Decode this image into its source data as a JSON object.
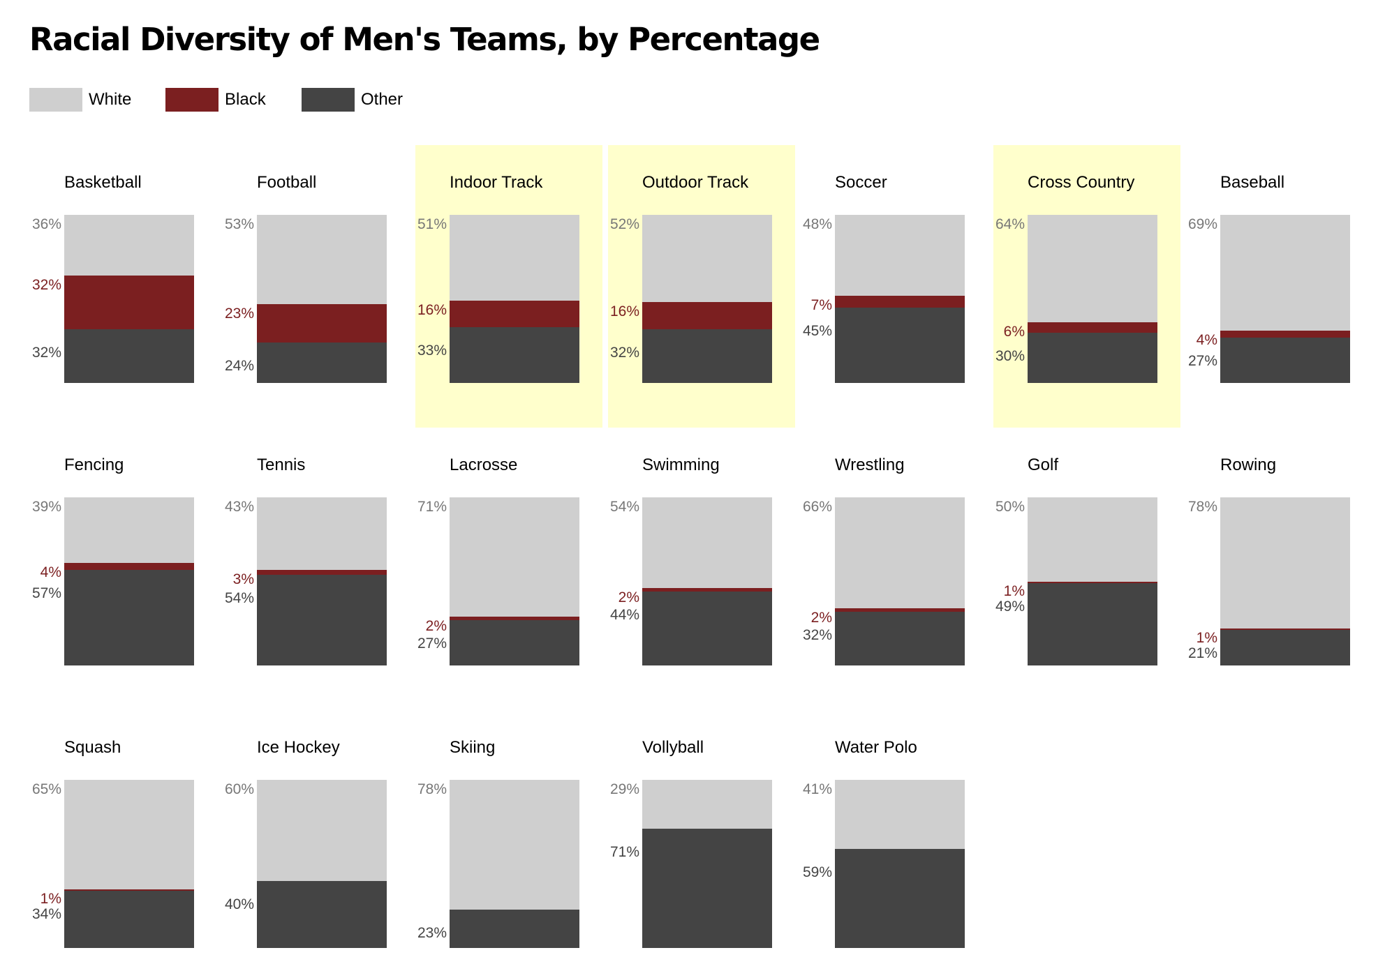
{
  "chart_data": {
    "type": "bar",
    "title": "Racial Diversity of Men's Teams, by Percentage",
    "stacked": true,
    "ylim": [
      0,
      100
    ],
    "legend": {
      "placement": "top-left",
      "entries": [
        {
          "key": "white",
          "label": "White",
          "color": "#cfcfcf"
        },
        {
          "key": "black",
          "label": "Black",
          "color": "#7b1f20"
        },
        {
          "key": "other",
          "label": "Other",
          "color": "#444444"
        }
      ]
    },
    "highlight_color": "#ffffcc",
    "label_colors": {
      "white": "#777777",
      "black": "#7b1f20",
      "other": "#444444"
    },
    "categories": [
      "Basketball",
      "Football",
      "Indoor Track",
      "Outdoor Track",
      "Soccer",
      "Cross Country",
      "Baseball",
      "Fencing",
      "Tennis",
      "Lacrosse",
      "Swimming",
      "Wrestling",
      "Golf",
      "Rowing",
      "Squash",
      "Ice Hockey",
      "Skiing",
      "Vollyball",
      "Water Polo"
    ],
    "panels": [
      {
        "name": "Basketball",
        "white": 36,
        "black": 32,
        "other": 32,
        "white_label": "36%",
        "black_label": "32%",
        "other_label": "32%",
        "highlighted": false
      },
      {
        "name": "Football",
        "white": 53,
        "black": 23,
        "other": 24,
        "white_label": "53%",
        "black_label": "23%",
        "other_label": "24%",
        "highlighted": false
      },
      {
        "name": "Indoor Track",
        "white": 51,
        "black": 16,
        "other": 33,
        "white_label": "51%",
        "black_label": "16%",
        "other_label": "33%",
        "highlighted": true
      },
      {
        "name": "Outdoor Track",
        "white": 52,
        "black": 16,
        "other": 32,
        "white_label": "52%",
        "black_label": "16%",
        "other_label": "32%",
        "highlighted": true
      },
      {
        "name": "Soccer",
        "white": 48,
        "black": 7,
        "other": 45,
        "white_label": "48%",
        "black_label": "7%",
        "other_label": "45%",
        "highlighted": false
      },
      {
        "name": "Cross Country",
        "white": 64,
        "black": 6,
        "other": 30,
        "white_label": "64%",
        "black_label": "6%",
        "other_label": "30%",
        "highlighted": true
      },
      {
        "name": "Baseball",
        "white": 69,
        "black": 4,
        "other": 27,
        "white_label": "69%",
        "black_label": "4%",
        "other_label": "27%",
        "highlighted": false
      },
      {
        "name": "Fencing",
        "white": 39,
        "black": 4,
        "other": 57,
        "white_label": "39%",
        "black_label": "4%",
        "other_label": "57%",
        "highlighted": false
      },
      {
        "name": "Tennis",
        "white": 43,
        "black": 3,
        "other": 54,
        "white_label": "43%",
        "black_label": "3%",
        "other_label": "54%",
        "highlighted": false
      },
      {
        "name": "Lacrosse",
        "white": 71,
        "black": 2,
        "other": 27,
        "white_label": "71%",
        "black_label": "2%",
        "other_label": "27%",
        "highlighted": false
      },
      {
        "name": "Swimming",
        "white": 54,
        "black": 2,
        "other": 44,
        "white_label": "54%",
        "black_label": "2%",
        "other_label": "44%",
        "highlighted": false
      },
      {
        "name": "Wrestling",
        "white": 66,
        "black": 2,
        "other": 32,
        "white_label": "66%",
        "black_label": "2%",
        "other_label": "32%",
        "highlighted": false
      },
      {
        "name": "Golf",
        "white": 50,
        "black": 1,
        "other": 49,
        "white_label": "50%",
        "black_label": "1%",
        "other_label": "49%",
        "highlighted": false
      },
      {
        "name": "Rowing",
        "white": 78,
        "black": 1,
        "other": 21,
        "white_label": "78%",
        "black_label": "1%",
        "other_label": "21%",
        "highlighted": false
      },
      {
        "name": "Squash",
        "white": 65,
        "black": 1,
        "other": 34,
        "white_label": "65%",
        "black_label": "1%",
        "other_label": "34%",
        "highlighted": false
      },
      {
        "name": "Ice Hockey",
        "white": 60,
        "black": 0,
        "other": 40,
        "white_label": "60%",
        "black_label": "",
        "other_label": "40%",
        "highlighted": false
      },
      {
        "name": "Skiing",
        "white": 78,
        "black": 0,
        "other": 23,
        "white_label": "78%",
        "black_label": "",
        "other_label": "23%",
        "highlighted": false
      },
      {
        "name": "Vollyball",
        "white": 29,
        "black": 0,
        "other": 71,
        "white_label": "29%",
        "black_label": "",
        "other_label": "71%",
        "highlighted": false
      },
      {
        "name": "Water Polo",
        "white": 41,
        "black": 0,
        "other": 59,
        "white_label": "41%",
        "black_label": "",
        "other_label": "59%",
        "highlighted": false
      }
    ]
  }
}
